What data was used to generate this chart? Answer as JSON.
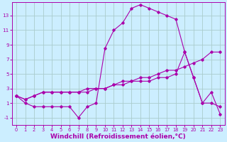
{
  "bg_color": "#cceeff",
  "line_color": "#aa00aa",
  "grid_color": "#aacccc",
  "xlabel": "Windchill (Refroidissement éolien,°C)",
  "xlabel_fontsize": 6.5,
  "yticks": [
    -1,
    1,
    3,
    5,
    7,
    9,
    11,
    13
  ],
  "xticks": [
    0,
    1,
    2,
    3,
    4,
    5,
    6,
    7,
    8,
    9,
    10,
    11,
    12,
    13,
    14,
    15,
    16,
    17,
    18,
    19,
    20,
    21,
    22,
    23
  ],
  "xlim": [
    -0.5,
    23.5
  ],
  "ylim": [
    -2.0,
    14.8
  ],
  "series1_x": [
    0,
    1,
    2,
    3,
    4,
    5,
    6,
    7,
    8,
    9,
    10,
    11,
    12,
    13,
    14,
    15,
    16,
    17,
    18,
    19,
    20,
    21,
    22,
    23
  ],
  "series1_y": [
    2,
    1,
    0.5,
    0.5,
    0.5,
    0.5,
    0.5,
    -1,
    0.5,
    1,
    8.5,
    11,
    12,
    14,
    14.5,
    14,
    13.5,
    13,
    12.5,
    8,
    4.5,
    1,
    2.5,
    -0.5
  ],
  "series2_x": [
    0,
    1,
    2,
    3,
    4,
    5,
    6,
    7,
    8,
    9,
    10,
    11,
    12,
    13,
    14,
    15,
    16,
    17,
    18,
    19,
    20,
    21,
    22,
    23
  ],
  "series2_y": [
    2,
    1.5,
    2,
    2.5,
    2.5,
    2.5,
    2.5,
    2.5,
    3,
    3,
    3,
    3.5,
    3.5,
    4,
    4,
    4,
    4.5,
    4.5,
    5,
    8,
    4.5,
    1,
    1,
    0.5
  ],
  "series3_x": [
    0,
    1,
    2,
    3,
    4,
    5,
    6,
    7,
    8,
    9,
    10,
    11,
    12,
    13,
    14,
    15,
    16,
    17,
    18,
    19,
    20,
    21,
    22,
    23
  ],
  "series3_y": [
    2,
    1.5,
    2,
    2.5,
    2.5,
    2.5,
    2.5,
    2.5,
    2.5,
    3,
    3,
    3.5,
    4,
    4,
    4.5,
    4.5,
    5,
    5.5,
    5.5,
    6,
    6.5,
    7,
    8,
    8
  ]
}
